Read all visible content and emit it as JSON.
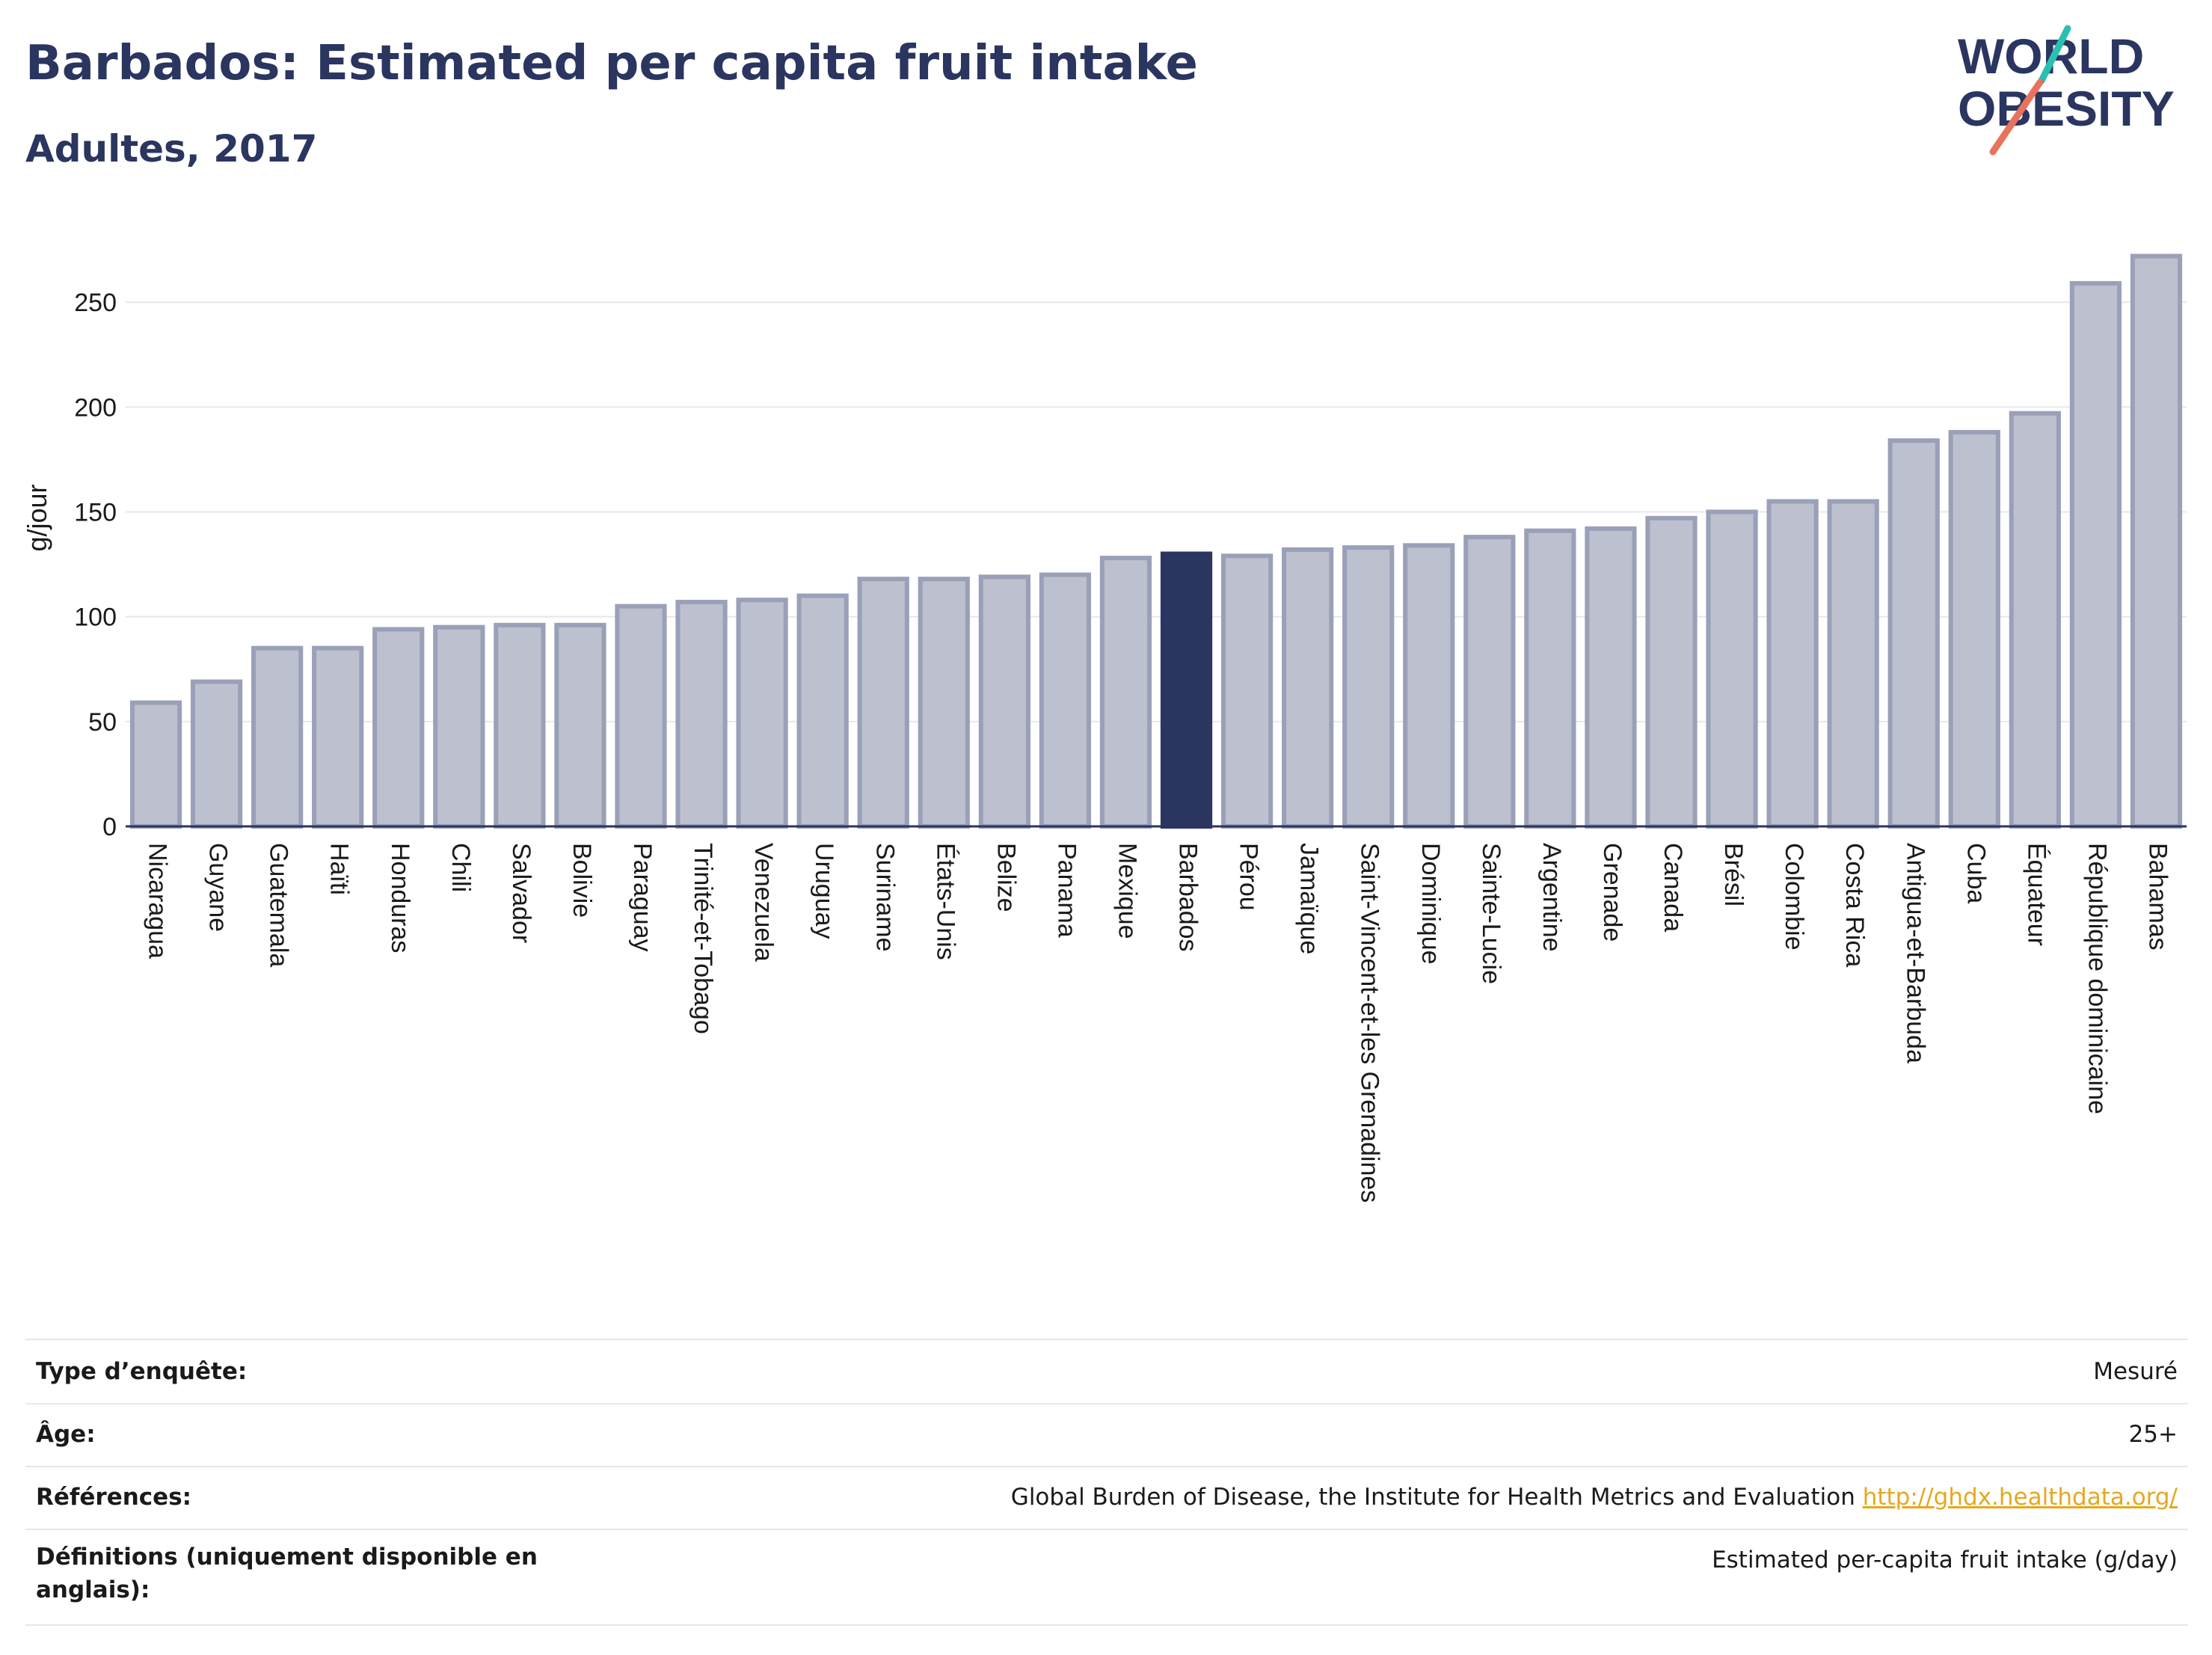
{
  "title": "Barbados: Estimated per capita fruit intake",
  "subtitle": "Adultes, 2017",
  "logo": {
    "line1": "WORLD",
    "line2": "OBESITY"
  },
  "colors": {
    "highlight": "#2a3560",
    "bar": "#bcc0cf",
    "bar_border": "#9aa0b8",
    "title": "#2a3560",
    "link": "#e5a820"
  },
  "chart_data": {
    "type": "bar",
    "ylabel": "g/jour",
    "ylim": [
      0,
      280
    ],
    "yticks": [
      0,
      50,
      100,
      150,
      200,
      250
    ],
    "grid": true,
    "highlight": "Barbados",
    "categories": [
      "Nicaragua",
      "Guyane",
      "Guatemala",
      "Haïti",
      "Honduras",
      "Chili",
      "Salvador",
      "Bolivie",
      "Paraguay",
      "Trinité-et-Tobago",
      "Venezuela",
      "Uruguay",
      "Suriname",
      "États-Unis",
      "Belize",
      "Panama",
      "Mexique",
      "Barbados",
      "Pérou",
      "Jamaïque",
      "Saint-Vincent-et-les Grenadines",
      "Dominique",
      "Sainte-Lucie",
      "Argentine",
      "Grenade",
      "Canada",
      "Brésil",
      "Colombie",
      "Costa Rica",
      "Antigua-et-Barbuda",
      "Cuba",
      "Équateur",
      "République dominicaine",
      "Bahamas"
    ],
    "values": [
      59,
      69,
      85,
      85,
      94,
      95,
      96,
      96,
      105,
      107,
      108,
      110,
      118,
      118,
      119,
      120,
      128,
      130,
      129,
      132,
      133,
      134,
      138,
      141,
      142,
      147,
      150,
      155,
      155,
      184,
      188,
      197,
      259,
      272
    ]
  },
  "meta": [
    {
      "label": "Type d’enquête:",
      "value": "Mesuré"
    },
    {
      "label": "Âge:",
      "value": "25+"
    },
    {
      "label": "Références:",
      "value": "Global Burden of Disease, the Institute for Health Metrics and Evaluation",
      "link": "http://ghdx.healthdata.org/"
    },
    {
      "label": "Définitions (uniquement disponible en anglais):",
      "value": "Estimated per-capita fruit intake (g/day)"
    }
  ]
}
